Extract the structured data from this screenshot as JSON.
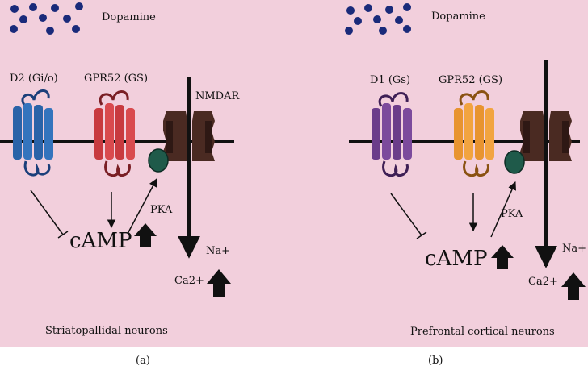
{
  "panel_a": {
    "ligand": "Dopamine",
    "receptor_1": "D2 (Gi/o)",
    "receptor_2": "GPR52 (GS)",
    "channel": "NMDAR",
    "kinase": "PKA",
    "second_messenger": "cAMP",
    "ion_in": "Na+",
    "ion_out": "Ca2+",
    "neuron_type": "Striatopallidal neurons",
    "caption": "(a)",
    "colors": {
      "receptor_1": "#2a63a8",
      "receptor_2": "#c83a3f",
      "channel": "#4a2a22",
      "pka": "#1f5a4a",
      "background": "#f2cfdc"
    }
  },
  "panel_b": {
    "ligand": "Dopamine",
    "receptor_1": "D1 (Gs)",
    "receptor_2": "GPR52 (GS)",
    "kinase": "PKA",
    "second_messenger": "cAMP",
    "ion_in": "Na+",
    "ion_out": "Ca2+",
    "neuron_type": "Prefrontal cortical neurons",
    "caption": "(b)",
    "colors": {
      "receptor_1": "#6b3d8a",
      "receptor_2": "#e89430",
      "channel": "#4a2a22",
      "pka": "#1f5a4a",
      "background": "#f2cfdc"
    }
  }
}
